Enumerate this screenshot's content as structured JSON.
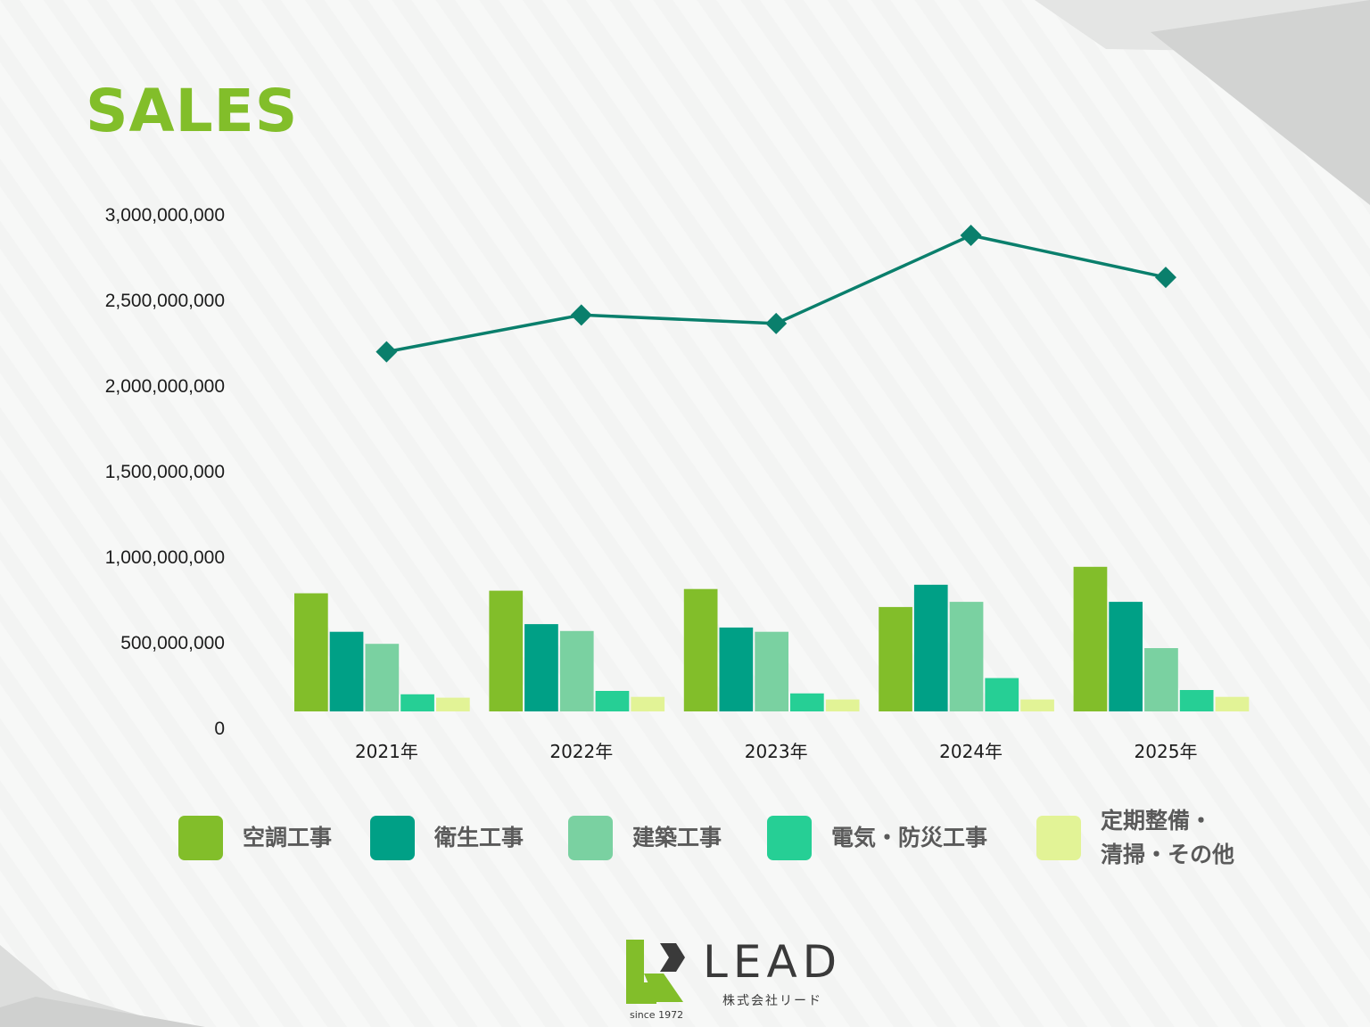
{
  "page": {
    "title": "SALES"
  },
  "colors": {
    "title": "#82be2a",
    "line": "#0a7f6c",
    "background": "#f7f8f7"
  },
  "chart_data": {
    "type": "bar",
    "categories": [
      "2021年",
      "2022年",
      "2023年",
      "2024年",
      "2025年"
    ],
    "ylim": [
      0,
      3000000000
    ],
    "yticks": [
      {
        "value": 0,
        "label": "0"
      },
      {
        "value": 500000000,
        "label": "500,000,000"
      },
      {
        "value": 1000000000,
        "label": "1,000,000,000"
      },
      {
        "value": 1500000000,
        "label": "1,500,000,000"
      },
      {
        "value": 2000000000,
        "label": "2,000,000,000"
      },
      {
        "value": 2500000000,
        "label": "2,500,000,000"
      },
      {
        "value": 3000000000,
        "label": "3,000,000,000"
      }
    ],
    "grid": false,
    "legend_position": "bottom",
    "series": [
      {
        "name": "空調工事",
        "kind": "bar",
        "color": "#82be2a",
        "values": [
          690000000,
          705000000,
          715000000,
          610000000,
          845000000
        ]
      },
      {
        "name": "衛生工事",
        "kind": "bar",
        "color": "#00a086",
        "values": [
          465000000,
          510000000,
          490000000,
          740000000,
          640000000
        ]
      },
      {
        "name": "建築工事",
        "kind": "bar",
        "color": "#7ad1a1",
        "values": [
          395000000,
          470000000,
          465000000,
          640000000,
          370000000
        ]
      },
      {
        "name": "電気・防災工事",
        "kind": "bar",
        "color": "#26cf95",
        "values": [
          100000000,
          120000000,
          105000000,
          195000000,
          125000000
        ]
      },
      {
        "name": "定期整備・\n清掃・その他",
        "kind": "bar",
        "color": "#e2f396",
        "values": [
          80000000,
          85000000,
          70000000,
          70000000,
          85000000
        ]
      },
      {
        "kind": "line",
        "color": "#0a7f6c",
        "marker": "diamond",
        "values": [
          2200000000,
          2415000000,
          2365000000,
          2880000000,
          2635000000
        ]
      }
    ]
  },
  "logo": {
    "name": "LEAD",
    "company": "株式会社リード",
    "since": "since 1972"
  }
}
